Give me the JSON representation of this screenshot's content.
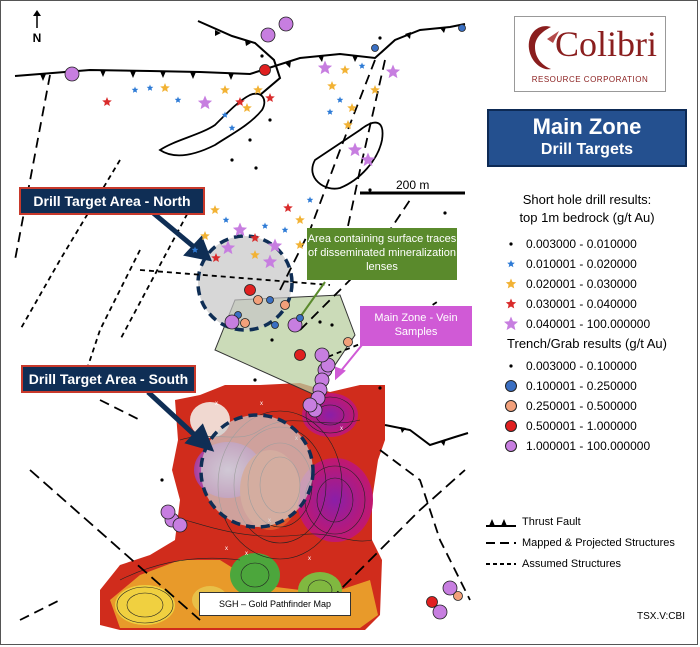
{
  "north_letter": "N",
  "scale": {
    "label": "200 m"
  },
  "logo": {
    "word": "Colibri",
    "subtitle": "RESOURCE CORPORATION"
  },
  "title": {
    "main": "Main Zone",
    "sub": "Drill Targets"
  },
  "callouts": {
    "north": "Drill Target Area - North",
    "south": "Drill Target Area - South",
    "lenses": "Area containing surface traces of disseminated mineralization lenses",
    "vein": "Main Zone - Vein Samples",
    "sgh": "SGH – Gold Pathfinder Map"
  },
  "legend": {
    "short_hole": {
      "heading_1": "Short hole drill results:",
      "heading_2": "top 1m bedrock (g/t Au)",
      "rows": [
        {
          "range": "0.003000 - 0.010000",
          "symbol": "dot",
          "color": "#000000"
        },
        {
          "range": "0.010001 - 0.020000",
          "symbol": "small-star",
          "color": "#2e7bd6"
        },
        {
          "range": "0.020001 - 0.030000",
          "symbol": "star",
          "color": "#f2b234"
        },
        {
          "range": "0.030001 - 0.040000",
          "symbol": "star",
          "color": "#d92b2b"
        },
        {
          "range": "0.040001 - 100.000000",
          "symbol": "large-star",
          "color": "#c77ee0"
        }
      ]
    },
    "trench": {
      "heading": "Trench/Grab results (g/t Au)",
      "rows": [
        {
          "range": "0.003000 - 0.100000",
          "symbol": "dot",
          "color": "#000000"
        },
        {
          "range": "0.100001 - 0.250000",
          "symbol": "circle",
          "color": "#3a6fc2"
        },
        {
          "range": "0.250001 - 0.500000",
          "symbol": "circle",
          "color": "#f2a07a"
        },
        {
          "range": "0.500001 - 1.000000",
          "symbol": "circle",
          "color": "#e02020"
        },
        {
          "range": "1.000001 - 100.000000",
          "symbol": "circle",
          "color": "#c77ee0"
        }
      ]
    },
    "lines": [
      {
        "label": "Thrust Fault",
        "style": "thrust"
      },
      {
        "label": "Mapped & Projected Structures",
        "style": "long-dash"
      },
      {
        "label": "Assumed Structures",
        "style": "short-dash"
      }
    ]
  },
  "ticker": "TSX.V:CBI"
}
